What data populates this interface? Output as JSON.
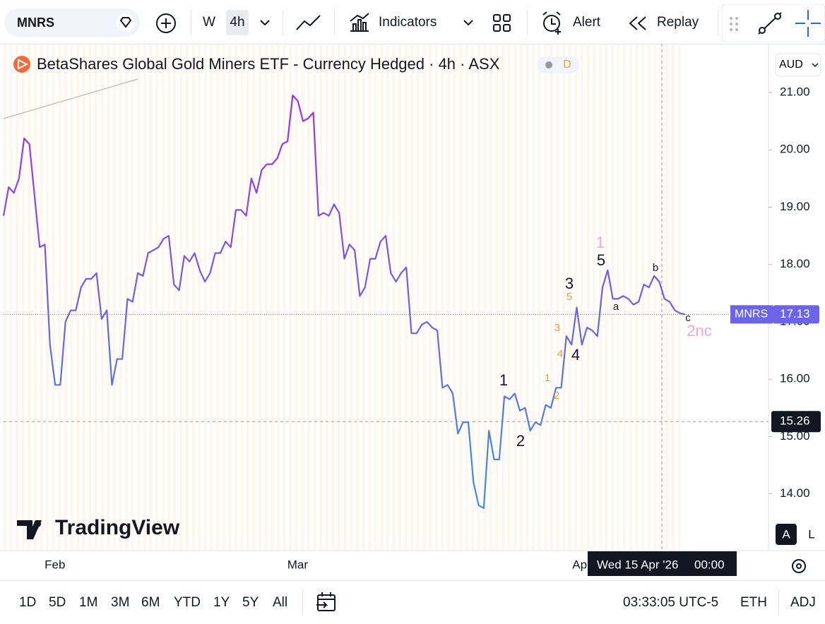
{
  "toolbar": {
    "symbol": "MNRS",
    "intervals": [
      "W",
      "4h"
    ],
    "indicators": "Indicators",
    "alert": "Alert",
    "replay": "Replay"
  },
  "legend": {
    "title": "BetaShares Global Gold Miners ETF - Currency Hedged · 4h · ASX",
    "badge": "D"
  },
  "currency": "AUD",
  "logo": "TradingView",
  "scale_buttons": [
    "A",
    "L"
  ],
  "crosshair": {
    "date": "Wed 15 Apr '26",
    "time": "00:00",
    "price": {
      "value": 15.26,
      "label": "15.26"
    }
  },
  "bottom_bar": {
    "ranges": [
      "1D",
      "5D",
      "1M",
      "3M",
      "6M",
      "YTD",
      "1Y",
      "5Y",
      "All"
    ],
    "clock": "03:33:05 UTC-5",
    "session": "ETH",
    "adjust": "ADJ"
  },
  "chart_data": {
    "type": "line",
    "categories": [
      null,
      null,
      null,
      null,
      null,
      null,
      null,
      null,
      null,
      "Feb",
      null,
      null,
      null,
      null,
      null,
      null,
      null,
      null,
      null,
      null,
      null,
      null,
      null,
      null,
      null,
      null,
      null,
      null,
      null,
      null,
      null,
      null,
      null,
      null,
      null,
      null,
      null,
      null,
      null,
      null,
      null,
      null,
      null,
      null,
      null,
      null,
      null,
      null,
      null,
      null,
      null,
      null,
      null,
      null,
      null,
      null,
      "Mar",
      null,
      null,
      null,
      null,
      null,
      null,
      null,
      null,
      null,
      null,
      null,
      null,
      null,
      null,
      null,
      null,
      null,
      null,
      null,
      null,
      null,
      null,
      null,
      null,
      null,
      null,
      null,
      null,
      null,
      null,
      null,
      null,
      null,
      null,
      null,
      null,
      null,
      null,
      null,
      null,
      null,
      null,
      null,
      null,
      null,
      null,
      null,
      null,
      null,
      null,
      null,
      null,
      null,
      null,
      "Apr",
      null,
      null,
      null,
      null,
      null,
      null,
      null,
      null,
      null,
      null,
      null,
      null,
      null,
      null,
      null,
      null,
      null,
      null,
      null,
      null,
      null
    ],
    "series": [
      {
        "name": "MNRS",
        "colors": [
          "#a12ee6",
          "#3d8fe0"
        ],
        "values": [
          18.85,
          19.35,
          19.25,
          19.5,
          20.2,
          20.1,
          19.2,
          18.3,
          18.35,
          16.6,
          15.9,
          15.9,
          17.0,
          17.2,
          17.2,
          17.6,
          17.75,
          17.75,
          17.85,
          17.05,
          17.2,
          15.9,
          16.35,
          16.35,
          17.4,
          17.35,
          17.85,
          17.8,
          18.2,
          18.25,
          18.3,
          18.45,
          18.5,
          17.65,
          17.55,
          18.15,
          18.05,
          18.2,
          17.9,
          17.7,
          17.85,
          18.2,
          18.2,
          18.4,
          18.3,
          18.95,
          18.95,
          18.85,
          19.5,
          19.25,
          19.65,
          19.75,
          19.75,
          19.85,
          20.1,
          20.15,
          20.95,
          20.85,
          20.5,
          20.55,
          20.65,
          18.85,
          18.9,
          18.85,
          19.05,
          18.9,
          18.1,
          18.35,
          18.25,
          17.45,
          17.6,
          18.1,
          18.1,
          18.4,
          18.5,
          17.85,
          17.7,
          17.85,
          17.95,
          16.8,
          16.8,
          16.95,
          17.0,
          16.9,
          16.85,
          15.85,
          15.9,
          15.75,
          15.05,
          15.25,
          15.25,
          14.2,
          13.8,
          13.75,
          15.1,
          14.6,
          14.6,
          15.7,
          15.65,
          15.75,
          15.45,
          15.5,
          15.1,
          15.25,
          15.2,
          15.55,
          15.5,
          15.85,
          15.85,
          16.75,
          16.6,
          17.25,
          16.6,
          16.9,
          16.85,
          16.75,
          17.6,
          17.9,
          17.4,
          17.4,
          17.45,
          17.4,
          17.3,
          17.35,
          17.65,
          17.6,
          17.8,
          17.7,
          17.4,
          17.35,
          17.2,
          17.15,
          17.13
        ]
      }
    ],
    "last_price": {
      "value": 17.13,
      "label": "17.13",
      "color": "#6b63e8"
    },
    "ylim": [
      13.01,
      21.85
    ],
    "yticks": [
      {
        "value": 14,
        "label": "14.00"
      },
      {
        "value": 15,
        "label": "15.00"
      },
      {
        "value": 16,
        "label": "16.00"
      },
      {
        "value": 17,
        "label": "17.00"
      },
      {
        "value": 18,
        "label": "18.00"
      },
      {
        "value": 19,
        "label": "19.00"
      },
      {
        "value": 20,
        "label": "20.00"
      },
      {
        "value": 21,
        "label": "21.00"
      }
    ],
    "annotations": [
      {
        "text": "1",
        "color": "#f2a9c9"
      },
      {
        "text": "5",
        "color": "#131722"
      },
      {
        "text": "3",
        "color": "#131722"
      },
      {
        "text": "5",
        "color": "#f09a4a"
      },
      {
        "text": "3",
        "color": "#f09a4a"
      },
      {
        "text": "4",
        "color": "#f09a4a"
      },
      {
        "text": "4",
        "color": "#131722"
      },
      {
        "text": "1",
        "color": "#131722"
      },
      {
        "text": "1",
        "color": "#f09a4a"
      },
      {
        "text": "2",
        "color": "#f09a4a"
      },
      {
        "text": "2",
        "color": "#131722"
      },
      {
        "text": "a",
        "color": "#131722"
      },
      {
        "text": "b",
        "color": "#131722"
      },
      {
        "text": "c",
        "color": "#131722"
      },
      {
        "text": "2nc",
        "color": "#f2a9c9"
      }
    ]
  }
}
